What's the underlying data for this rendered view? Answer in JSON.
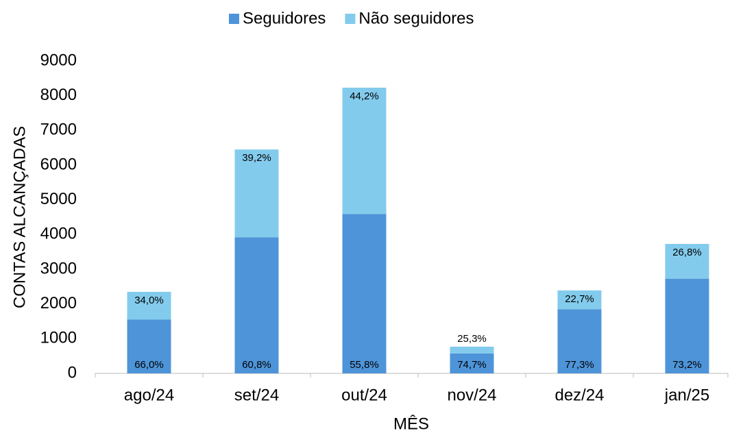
{
  "chart_data": {
    "type": "stacked_bar",
    "categories": [
      "ago/24",
      "set/24",
      "out/24",
      "nov/24",
      "dez/24",
      "jan/25"
    ],
    "series": [
      {
        "name": "Seguidores",
        "color": "#4e94d8",
        "values": [
          1550,
          3920,
          4590,
          575,
          1850,
          2730
        ],
        "percent_labels": [
          "66,0%",
          "60,8%",
          "55,8%",
          "74,7%",
          "77,3%",
          "73,2%"
        ]
      },
      {
        "name": "Não seguidores",
        "color": "#83cbec",
        "values": [
          800,
          2530,
          3640,
          195,
          540,
          1000
        ],
        "percent_labels": [
          "34,0%",
          "39,2%",
          "44,2%",
          "25,3%",
          "22,7%",
          "26,8%"
        ]
      }
    ],
    "x_label": "MÊS",
    "y_label": "CONTAS ALCANÇADAS",
    "ylim": [
      0,
      9000
    ],
    "yticks": [
      0,
      1000,
      2000,
      3000,
      4000,
      5000,
      6000,
      7000,
      8000,
      9000
    ],
    "grid": false,
    "legend": "top"
  }
}
